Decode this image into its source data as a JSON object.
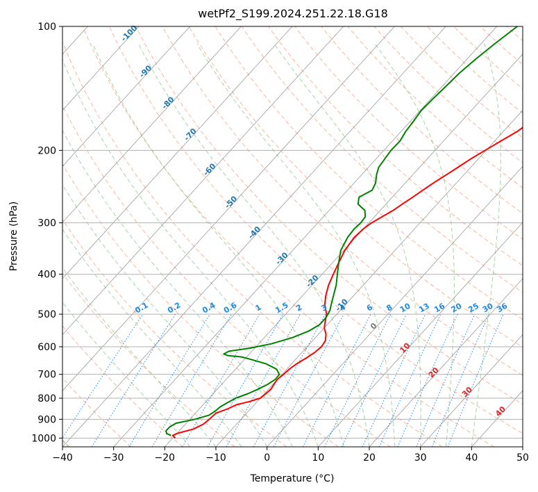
{
  "chart_data": {
    "type": "line",
    "title": "wetPf2_S199.2024.251.22.18.G18",
    "xlabel": "Temperature (°C)",
    "ylabel": "Pressure (hPa)",
    "xlim": [
      -40,
      50
    ],
    "ylim": [
      1050,
      100
    ],
    "y_scale": "log",
    "grid": true,
    "x_ticks": [
      -40,
      -30,
      -20,
      -10,
      0,
      10,
      20,
      30,
      40,
      50
    ],
    "x_tick_labels": [
      "−40",
      "−30",
      "−20",
      "−10",
      "0",
      "10",
      "20",
      "30",
      "40",
      "50"
    ],
    "y_ticks": [
      1000,
      900,
      800,
      700,
      600,
      500,
      400,
      300,
      200,
      100
    ],
    "y_tick_labels": [
      "1000",
      "900",
      "800",
      "700",
      "600",
      "500",
      "400",
      "300",
      "200",
      "100"
    ],
    "series": [
      {
        "color": "#ff0000",
        "values_p": [
          1000,
          985,
          975,
          950,
          925,
          900,
          870,
          850,
          830,
          815,
          800,
          780,
          760,
          740,
          720,
          700,
          680,
          660,
          640,
          620,
          600,
          580,
          560,
          540,
          520,
          500,
          475,
          450,
          425,
          400,
          375,
          350,
          325,
          310,
          300,
          290,
          280,
          270,
          260,
          250,
          240,
          230,
          220,
          210,
          200,
          190,
          180,
          170,
          160,
          150,
          140,
          130,
          120,
          110,
          100
        ],
        "values_t": [
          -19.5,
          -20.5,
          -20.0,
          -17.5,
          -16.5,
          -16.2,
          -16.0,
          -14.5,
          -13.5,
          -11.5,
          -10.0,
          -9.7,
          -9.5,
          -9.8,
          -10.0,
          -9.7,
          -9.5,
          -9.0,
          -8.2,
          -7.5,
          -7.2,
          -7.5,
          -8.5,
          -10.0,
          -11.0,
          -12.0,
          -14.0,
          -15.5,
          -16.8,
          -17.8,
          -18.8,
          -19.8,
          -20.3,
          -20.0,
          -19.5,
          -18.5,
          -17.5,
          -16.8,
          -16.0,
          -15.3,
          -14.5,
          -13.5,
          -12.5,
          -11.5,
          -10.2,
          -8.8,
          -7.3,
          -6.3,
          -5.8,
          -5.2,
          -4.2,
          -3.3,
          -2.5,
          -1.6,
          -0.6
        ]
      },
      {
        "color": "#008000",
        "values_p": [
          985,
          975,
          960,
          940,
          920,
          900,
          880,
          860,
          840,
          820,
          800,
          780,
          760,
          740,
          720,
          700,
          680,
          660,
          645,
          635,
          630,
          625,
          615,
          605,
          590,
          570,
          550,
          530,
          510,
          490,
          470,
          450,
          425,
          400,
          375,
          350,
          325,
          310,
          300,
          290,
          280,
          270,
          260,
          250,
          240,
          230,
          220,
          210,
          200,
          190,
          180,
          170,
          160,
          150,
          140,
          130,
          120,
          110,
          100
        ],
        "values_t": [
          -20.8,
          -22.0,
          -22.6,
          -22.6,
          -22.0,
          -19.0,
          -17.0,
          -16.5,
          -16.3,
          -15.6,
          -14.8,
          -13.2,
          -12.0,
          -11.0,
          -10.4,
          -10.5,
          -12.0,
          -15.0,
          -18.5,
          -21.0,
          -24.0,
          -25.0,
          -24.5,
          -21.0,
          -17.5,
          -14.5,
          -12.5,
          -11.5,
          -11.5,
          -12.0,
          -13.0,
          -14.0,
          -15.3,
          -17.0,
          -18.8,
          -20.6,
          -21.6,
          -21.8,
          -21.6,
          -21.8,
          -23.0,
          -25.5,
          -26.5,
          -25.2,
          -25.8,
          -27.0,
          -28.0,
          -28.3,
          -28.6,
          -28.5,
          -29.1,
          -29.4,
          -29.8,
          -29.6,
          -29.3,
          -29.0,
          -28.3,
          -27.3,
          -26.0
        ]
      }
    ],
    "isotherm_labels": [
      "-100",
      "-90",
      "-80",
      "-70",
      "-60",
      "-50",
      "-40",
      "-30",
      "-20",
      "-10"
    ],
    "isotherm_label_values": [
      -100,
      -90,
      -80,
      -70,
      -60,
      -50,
      -40,
      -30,
      -20,
      -10
    ],
    "mixing_ratio_labels": [
      "0.1",
      "0.2",
      "0.4",
      "0.6",
      "1",
      "1.5",
      "2",
      "3",
      "4",
      "6",
      "8",
      "10",
      "13",
      "16",
      "20",
      "25",
      "30",
      "36"
    ],
    "mixing_ratio_values": [
      0.1,
      0.2,
      0.4,
      0.6,
      1,
      1.5,
      2,
      3,
      4,
      6,
      8,
      10,
      13,
      16,
      20,
      25,
      30,
      36
    ],
    "warm_isotherm_labels": [
      "0",
      "10",
      "20",
      "30",
      "40"
    ],
    "warm_isotherm_values": [
      0,
      10,
      20,
      30,
      40
    ],
    "colors": {
      "isotherm": "#888888",
      "isobar": "#b0b0b0",
      "dry_adiabat": "#f4a582",
      "moist_adiabat": "#90c890",
      "mixing_ratio": "#1e88e5",
      "cold_label": "#1f77b4",
      "warm_label": "#d62728",
      "zero_label": "#777777",
      "boundary_adiabat": "#d8c3a5"
    }
  }
}
